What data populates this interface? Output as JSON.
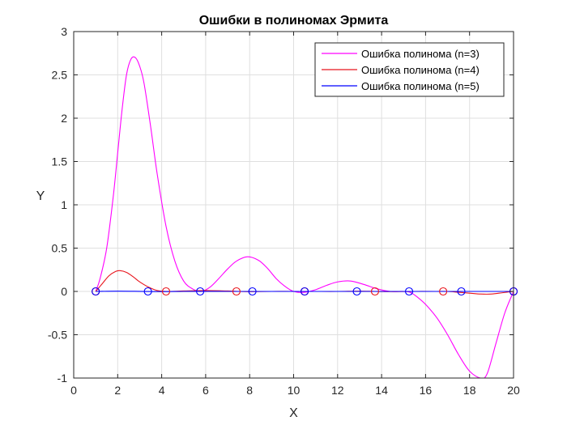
{
  "chart_data": {
    "type": "line",
    "title": "Ошибки в полиномах Эрмита",
    "xlabel": "X",
    "ylabel": "Y",
    "xlim": [
      0,
      20
    ],
    "ylim": [
      -1,
      3
    ],
    "xticks": [
      0,
      2,
      4,
      6,
      8,
      10,
      12,
      14,
      16,
      18,
      20
    ],
    "yticks": [
      -1,
      -0.5,
      0,
      0.5,
      1,
      1.5,
      2,
      2.5,
      3
    ],
    "grid": true,
    "legend_position": "top-right",
    "series": [
      {
        "name": "Ошибка полинома (n=3)",
        "color": "#ff00ff",
        "x": [
          1,
          1.2,
          1.5,
          1.8,
          2,
          2.2,
          2.4,
          2.6,
          2.8,
          3,
          3.2,
          3.5,
          3.8,
          4.2,
          4.6,
          5,
          5.4,
          5.8,
          6.2,
          6.6,
          7,
          7.4,
          7.9,
          8.4,
          8.8,
          9.2,
          9.6,
          10,
          10.5,
          11,
          11.5,
          12,
          12.6,
          13.2,
          13.8,
          14.4,
          15,
          15.3,
          15.6,
          16,
          16.5,
          17,
          17.5,
          18,
          18.5,
          18.8,
          19.2,
          19.6,
          20
        ],
        "y": [
          0,
          0.15,
          0.5,
          1.1,
          1.6,
          2.1,
          2.5,
          2.68,
          2.7,
          2.6,
          2.4,
          1.9,
          1.35,
          0.75,
          0.35,
          0.12,
          0.03,
          0.0,
          0.05,
          0.15,
          0.26,
          0.35,
          0.4,
          0.36,
          0.27,
          0.15,
          0.06,
          0.0,
          -0.01,
          0.02,
          0.07,
          0.11,
          0.12,
          0.08,
          0.03,
          0.0,
          0.0,
          -0.01,
          -0.06,
          -0.15,
          -0.3,
          -0.5,
          -0.73,
          -0.92,
          -1.0,
          -0.95,
          -0.6,
          -0.25,
          0
        ]
      },
      {
        "name": "Ошибка полинома (n=4)",
        "color": "#e8141c",
        "x": [
          1,
          1.3,
          1.6,
          1.9,
          2.1,
          2.4,
          2.7,
          3,
          3.4,
          3.8,
          4.2,
          5,
          6,
          7,
          7.5,
          8,
          9,
          10,
          11,
          12,
          13,
          13.7,
          14.5,
          15.5,
          16.5,
          17,
          17.5,
          18,
          18.5,
          19,
          19.5,
          20
        ],
        "y": [
          0,
          0.09,
          0.18,
          0.23,
          0.24,
          0.22,
          0.17,
          0.11,
          0.05,
          0.01,
          0.0,
          0.005,
          0.01,
          0.005,
          0.0,
          -0.003,
          0,
          0.0,
          0.0,
          0.0,
          0.003,
          0.0,
          -0.002,
          0.0,
          0.0,
          0.0,
          -0.01,
          -0.02,
          -0.03,
          -0.03,
          -0.015,
          0
        ]
      },
      {
        "name": "Ошибка полинома (n=5)",
        "color": "#0000ff",
        "x": [
          1,
          2,
          3,
          4,
          5,
          6,
          7,
          8,
          9,
          10,
          11,
          12,
          13,
          14,
          15,
          16,
          17,
          18,
          19,
          20
        ],
        "y": [
          0,
          0.003,
          0.001,
          -0.002,
          0.0,
          0.001,
          0.0,
          0.0,
          0.0,
          0.0,
          0.0,
          0.0,
          0.0,
          0.0,
          0.0,
          0.0,
          0.0,
          0.0,
          0.0,
          0
        ]
      }
    ],
    "marker_sets": [
      {
        "series": "Ошибка полинома (n=4)",
        "color": "#e8141c",
        "x": [
          1,
          4.2,
          7.4,
          10.5,
          13.7,
          16.8,
          20
        ],
        "y": [
          0,
          0,
          0,
          0,
          0,
          0,
          0
        ]
      },
      {
        "series": "Ошибка полинома (n=5)",
        "color": "#0000ff",
        "x": [
          1,
          3.375,
          5.75,
          8.125,
          10.5,
          12.875,
          15.25,
          17.625,
          20
        ],
        "y": [
          0,
          0,
          0,
          0,
          0,
          0,
          0,
          0,
          0
        ]
      }
    ]
  }
}
